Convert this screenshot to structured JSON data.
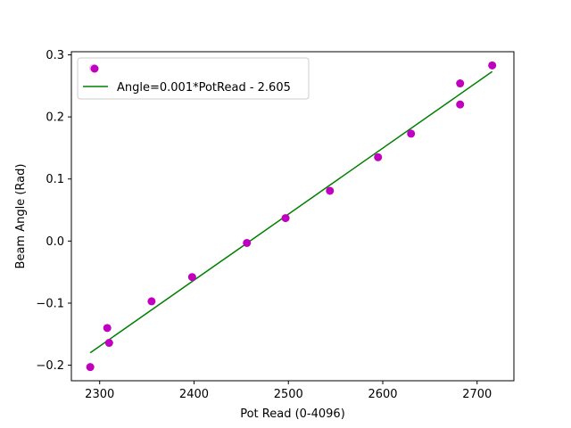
{
  "chart_data": {
    "type": "scatter",
    "title": "",
    "xlabel": "Pot Read (0-4096)",
    "ylabel": "Beam Angle (Rad)",
    "xlim": [
      2270,
      2739
    ],
    "ylim": [
      -0.225,
      0.305
    ],
    "xticks": [
      2300,
      2400,
      2500,
      2600,
      2700
    ],
    "yticks": [
      -0.2,
      -0.1,
      0.0,
      0.1,
      0.2,
      0.3
    ],
    "xtick_labels": [
      "2300",
      "2400",
      "2500",
      "2600",
      "2700"
    ],
    "ytick_labels": [
      "−0.2",
      "−0.1",
      "0.0",
      "0.1",
      "0.2",
      "0.3"
    ],
    "grid": false,
    "legend": {
      "position": "upper-left",
      "entries": [
        "Angle=0.001*PotRead - 2.605"
      ]
    },
    "series": [
      {
        "kind": "scatter",
        "color": "#bf00bf",
        "points": [
          {
            "x": 2290,
            "y": -0.203
          },
          {
            "x": 2293,
            "y": 0.279
          },
          {
            "x": 2308,
            "y": -0.14
          },
          {
            "x": 2310,
            "y": -0.164
          },
          {
            "x": 2355,
            "y": -0.097
          },
          {
            "x": 2398,
            "y": -0.058
          },
          {
            "x": 2456,
            "y": -0.003
          },
          {
            "x": 2497,
            "y": 0.037
          },
          {
            "x": 2544,
            "y": 0.081
          },
          {
            "x": 2595,
            "y": 0.135
          },
          {
            "x": 2630,
            "y": 0.173
          },
          {
            "x": 2682,
            "y": 0.254
          },
          {
            "x": 2682,
            "y": 0.22
          },
          {
            "x": 2716,
            "y": 0.283
          }
        ]
      },
      {
        "kind": "line",
        "name": "Angle=0.001*PotRead - 2.605",
        "color": "#008000",
        "x": [
          2290,
          2716
        ],
        "y": [
          -0.18,
          0.273
        ]
      }
    ]
  }
}
